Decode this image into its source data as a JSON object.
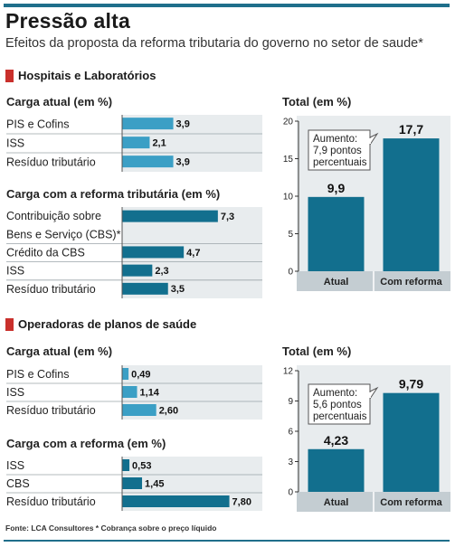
{
  "header": {
    "title": "Pressão alta",
    "subtitle": "Efeitos da proposta da reforma tributaria do governo no setor de saude*"
  },
  "sections": [
    {
      "label": "Hospitais e Laboratórios"
    },
    {
      "label": "Operadoras de planos de saúde"
    }
  ],
  "footer": {
    "text": "Fonte: LCA Consultores  * Cobrança sobre o preço líquido"
  },
  "colors": {
    "bar_dark": "#126f8e",
    "bar_light": "#3b9fc5",
    "panel": "#e8ecee",
    "axis_band": "#c4cdd2",
    "accent_red": "#c9302c"
  },
  "chart_data": [
    {
      "type": "bar",
      "orientation": "horizontal",
      "title": "Carga atual (em %)",
      "categories": [
        "PIS e Cofins",
        "ISS",
        "Resíduo tributário"
      ],
      "values": [
        3.9,
        2.1,
        3.9
      ],
      "value_labels": [
        "3,9",
        "2,1",
        "3,9"
      ]
    },
    {
      "type": "bar",
      "orientation": "horizontal",
      "title": "Carga com a reforma tributária (em %)",
      "categories": [
        "Contribuição sobre Bens e Serviço (CBS)*",
        "Crédito da CBS",
        "ISS",
        "Resíduo tributário"
      ],
      "category_lines": [
        [
          "Contribuição sobre",
          "Bens e Serviço (CBS)*"
        ],
        [
          "Crédito da CBS"
        ],
        [
          "ISS"
        ],
        [
          "Resíduo tributário"
        ]
      ],
      "values": [
        7.3,
        4.7,
        2.3,
        3.5
      ],
      "value_labels": [
        "7,3",
        "4,7",
        "2,3",
        "3,5"
      ]
    },
    {
      "type": "bar",
      "title": "Total (em %)",
      "categories": [
        "Atual",
        "Com reforma"
      ],
      "values": [
        9.9,
        17.7
      ],
      "value_labels": [
        "9,9",
        "17,7"
      ],
      "ylim": [
        0,
        20
      ],
      "yticks": [
        "0",
        "5",
        "10",
        "15",
        "20"
      ],
      "annotation": [
        "Aumento:",
        "7,9 pontos",
        "percentuais"
      ]
    },
    {
      "type": "bar",
      "orientation": "horizontal",
      "title": "Carga atual (em %)",
      "categories": [
        "PIS e Cofins",
        "ISS",
        "Resíduo tributário"
      ],
      "values": [
        0.49,
        1.14,
        2.6
      ],
      "value_labels": [
        "0,49",
        "1,14",
        "2,60"
      ]
    },
    {
      "type": "bar",
      "orientation": "horizontal",
      "title": "Carga com a reforma (em %)",
      "categories": [
        "ISS",
        "CBS",
        "Resíduo tributário"
      ],
      "values": [
        0.53,
        1.45,
        7.8
      ],
      "value_labels": [
        "0,53",
        "1,45",
        "7,80"
      ]
    },
    {
      "type": "bar",
      "title": "Total (em %)",
      "categories": [
        "Atual",
        "Com reforma"
      ],
      "values": [
        4.23,
        9.79
      ],
      "value_labels": [
        "4,23",
        "9,79"
      ],
      "ylim": [
        0,
        12
      ],
      "yticks": [
        "0",
        "3",
        "6",
        "9",
        "12"
      ],
      "annotation": [
        "Aumento:",
        "5,6 pontos",
        "percentuais"
      ]
    }
  ]
}
